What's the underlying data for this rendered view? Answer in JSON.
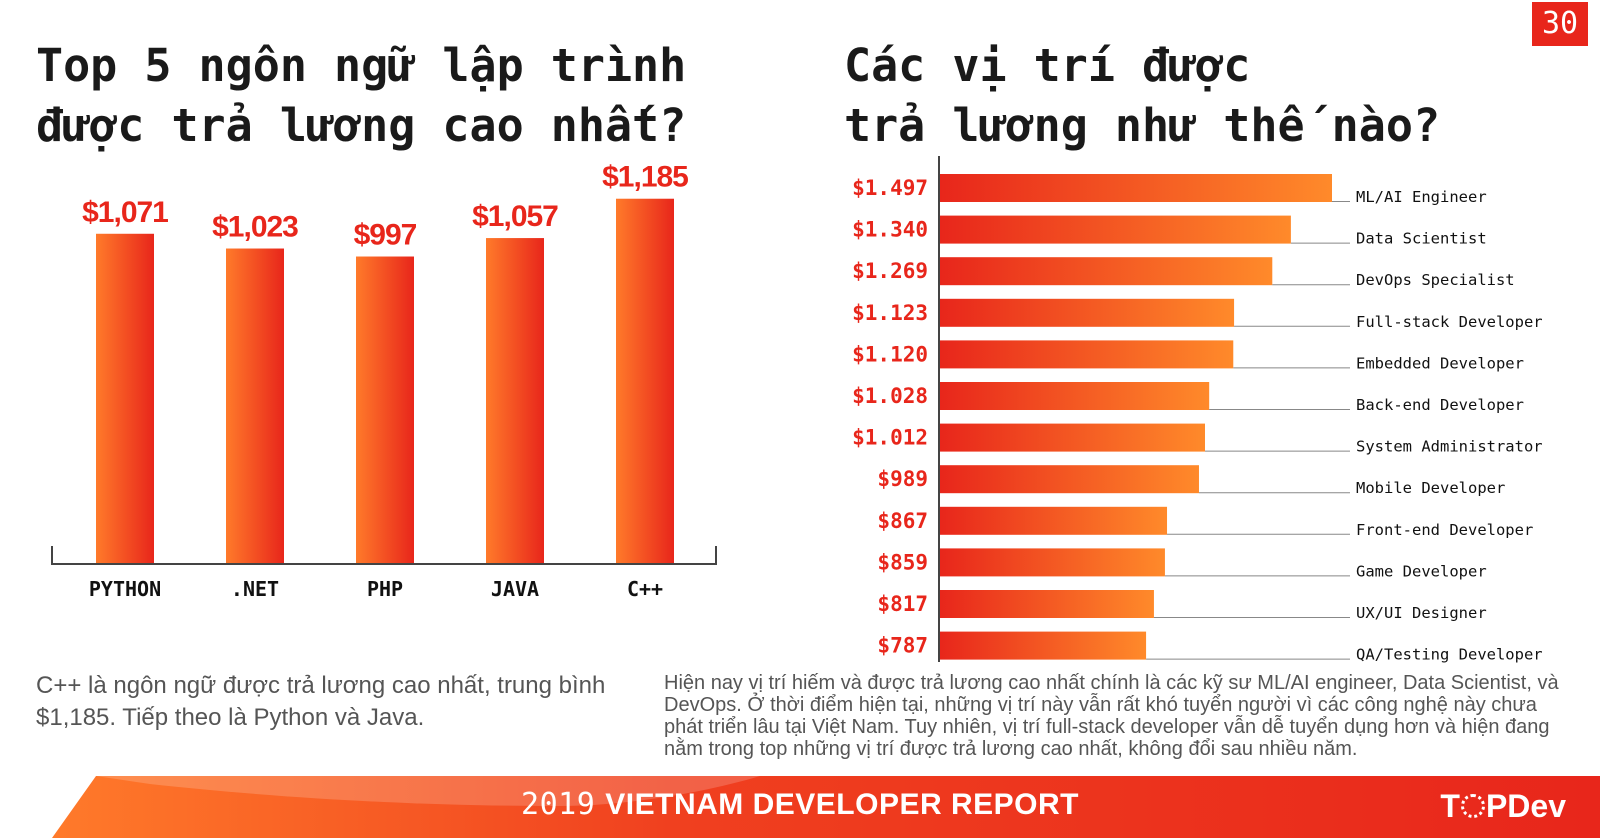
{
  "page_number": "30",
  "left": {
    "title_lines": [
      "Top 5 ngôn ngữ lập trình",
      "được trả lương cao nhất?"
    ],
    "note": "C++ là ngôn ngữ được trả lương cao nhất, trung bình $1,185. Tiếp theo là Python và Java."
  },
  "right": {
    "title_lines": [
      "Các vị trí được",
      "trả lương như thế nào?"
    ],
    "note": "Hiện nay vị trí hiếm và được trả lương cao nhất chính là các kỹ sư ML/AI engineer, Data Scientist, và DevOps. Ở thời điểm hiện tại, những vị trí này vẫn rất khó tuyển người vì các công nghệ này chưa phát triển lâu tại Việt Nam. Tuy nhiên, vị trí full-stack developer vẫn dễ tuyển dụng hơn và hiện đang nằm trong top những vị trí được trả lương cao nhất, không đổi sau nhiều năm."
  },
  "chart_data": [
    {
      "type": "bar",
      "orientation": "vertical",
      "categories": [
        "PYTHON",
        ".NET",
        "PHP",
        "JAVA",
        "C++"
      ],
      "values": [
        1071,
        1023,
        997,
        1057,
        1185
      ],
      "value_labels": [
        "$1,071",
        "$1,023",
        "$997",
        "$1,057",
        "$1,185"
      ],
      "ylim": [
        0,
        1350
      ],
      "colors": [
        "#ff7a2a",
        "#e8261b"
      ]
    },
    {
      "type": "bar",
      "orientation": "horizontal",
      "categories": [
        "ML/AI Engineer",
        "Data Scientist",
        "DevOps Specialist",
        "Full-stack Developer",
        "Embedded Developer",
        "Back-end Developer",
        "System Administrator",
        "Mobile Developer",
        "Front-end Developer",
        "Game Developer",
        "UX/UI Designer",
        "QA/Testing Developer"
      ],
      "values": [
        1497,
        1340,
        1269,
        1123,
        1120,
        1028,
        1012,
        989,
        867,
        859,
        817,
        787
      ],
      "value_labels": [
        "$1.497",
        "$1.340",
        "$1.269",
        "$1.123",
        "$1.120",
        "$1.028",
        "$1.012",
        "$989",
        "$867",
        "$859",
        "$817",
        "$787"
      ],
      "xlim": [
        0,
        1497
      ],
      "colors": [
        "#e8261b",
        "#ff8a2a"
      ]
    }
  ],
  "footer": {
    "year": "2019",
    "title": "VIETNAM DEVELOPER REPORT",
    "brand_pre": "T",
    "brand_post": "PDev"
  }
}
